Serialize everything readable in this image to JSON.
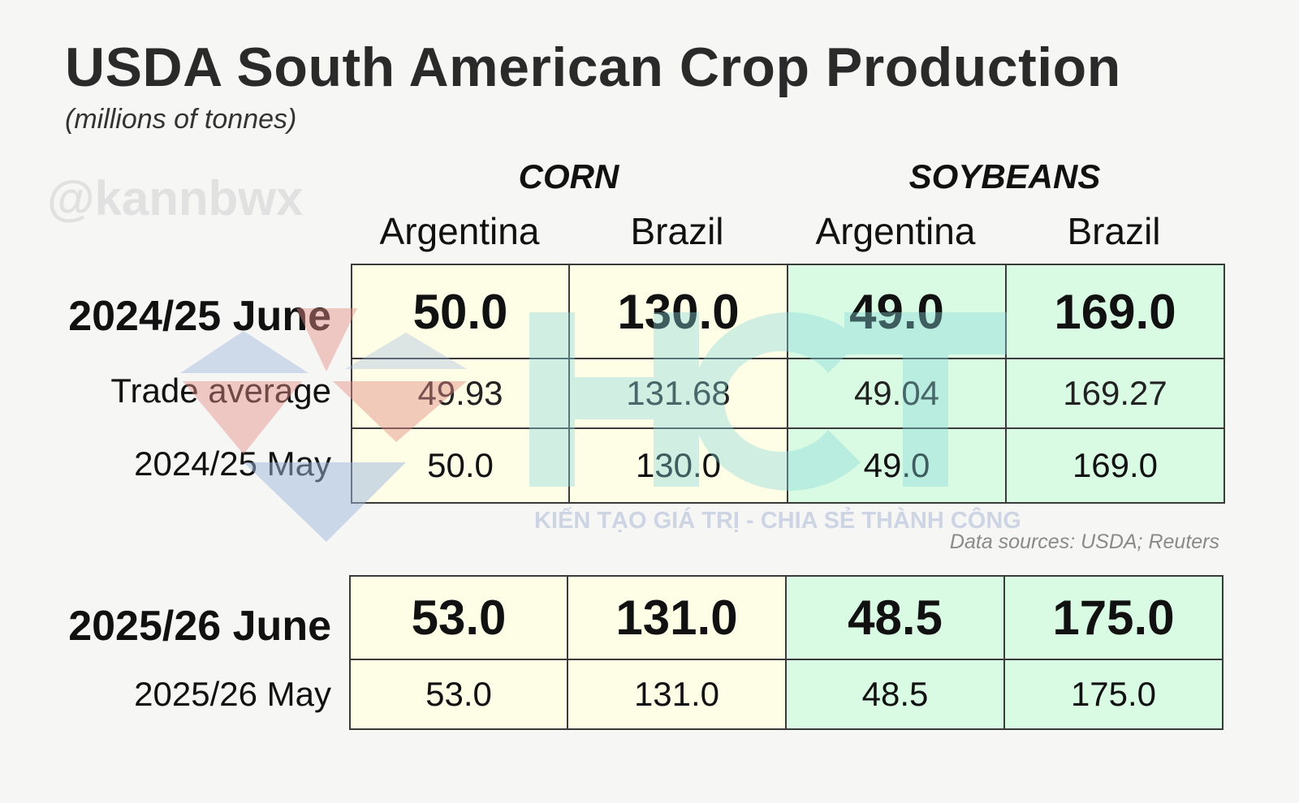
{
  "chart_data": {
    "type": "table",
    "title": "USDA South American Crop Production",
    "subtitle": "(millions of tonnes)",
    "handle": "@kannbwx",
    "groups": [
      {
        "name": "CORN",
        "countries": [
          "Argentina",
          "Brazil"
        ]
      },
      {
        "name": "SOYBEANS",
        "countries": [
          "Argentina",
          "Brazil"
        ]
      }
    ],
    "tables": [
      {
        "rows": [
          {
            "label": "2024/25 June",
            "emphasis": true,
            "values": [
              "50.0",
              "130.0",
              "49.0",
              "169.0"
            ]
          },
          {
            "label": "Trade average",
            "emphasis": false,
            "values": [
              "49.93",
              "131.68",
              "49.04",
              "169.27"
            ]
          },
          {
            "label": "2024/25 May",
            "emphasis": false,
            "values": [
              "50.0",
              "130.0",
              "49.0",
              "169.0"
            ]
          }
        ]
      },
      {
        "rows": [
          {
            "label": "2025/26 June",
            "emphasis": true,
            "values": [
              "53.0",
              "131.0",
              "48.5",
              "175.0"
            ]
          },
          {
            "label": "2025/26 May",
            "emphasis": false,
            "values": [
              "53.0",
              "131.0",
              "48.5",
              "175.0"
            ]
          }
        ]
      }
    ],
    "sources": "Data sources: USDA; Reuters"
  },
  "watermark": {
    "logo_text": "HCT",
    "tagline": "KIẾN TẠO GIÁ TRỊ - CHIA SẺ THÀNH CÔNG"
  },
  "colors": {
    "corn_cell": "#fefde6",
    "soy_cell": "#d9fbe3",
    "watermark_teal": "#86d8dc",
    "watermark_red": "#e58b86",
    "watermark_blue": "#9db8dc"
  }
}
